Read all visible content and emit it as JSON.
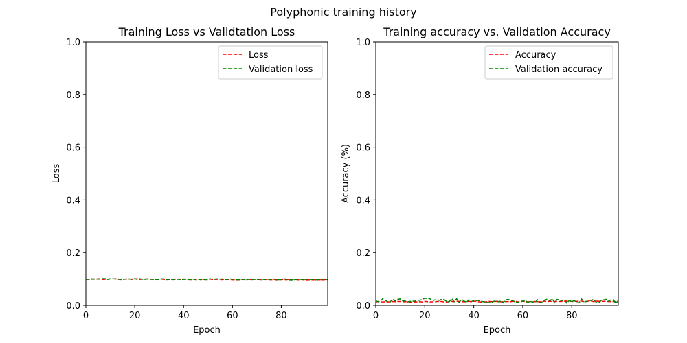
{
  "figure": {
    "suptitle": "Polyphonic training history"
  },
  "chart_data": [
    {
      "type": "line",
      "title": "Training Loss vs Validtation Loss",
      "xlabel": "Epoch",
      "ylabel": "Loss",
      "xlim": [
        0,
        99
      ],
      "ylim": [
        0,
        1
      ],
      "xticks": [
        0,
        20,
        40,
        60,
        80
      ],
      "yticks": [
        0.0,
        0.2,
        0.4,
        0.6,
        0.8,
        1.0
      ],
      "xtick_labels": [
        "0",
        "20",
        "40",
        "60",
        "80"
      ],
      "ytick_labels": [
        "0.0",
        "0.2",
        "0.4",
        "0.6",
        "0.8",
        "1.0"
      ],
      "grid": false,
      "legend_position": "top-right",
      "series": [
        {
          "name": "Loss",
          "color": "#ff0000",
          "dash": "dashed",
          "start": 0.1,
          "end": 0.097,
          "noise": 0.0015,
          "n_points": 100
        },
        {
          "name": "Validation loss",
          "color": "#008000",
          "dash": "dashed",
          "start": 0.1,
          "end": 0.098,
          "noise": 0.002,
          "n_points": 100
        }
      ]
    },
    {
      "type": "line",
      "title": "Training accuracy vs. Validation Accuracy",
      "xlabel": "Epoch",
      "ylabel": "Accuracy (%)",
      "xlim": [
        0,
        99
      ],
      "ylim": [
        0,
        1
      ],
      "xticks": [
        0,
        20,
        40,
        60,
        80
      ],
      "yticks": [
        0.0,
        0.2,
        0.4,
        0.6,
        0.8,
        1.0
      ],
      "xtick_labels": [
        "0",
        "20",
        "40",
        "60",
        "80"
      ],
      "ytick_labels": [
        "0.0",
        "0.2",
        "0.4",
        "0.6",
        "0.8",
        "1.0"
      ],
      "grid": false,
      "legend_position": "top-right",
      "series": [
        {
          "name": "Accuracy",
          "color": "#ff0000",
          "dash": "dashed",
          "start": 0.013,
          "end": 0.015,
          "noise": 0.0015,
          "n_points": 100
        },
        {
          "name": "Validation accuracy",
          "color": "#008000",
          "dash": "dashed",
          "start": 0.02,
          "end": 0.015,
          "noise": 0.008,
          "n_points": 100
        }
      ]
    }
  ]
}
